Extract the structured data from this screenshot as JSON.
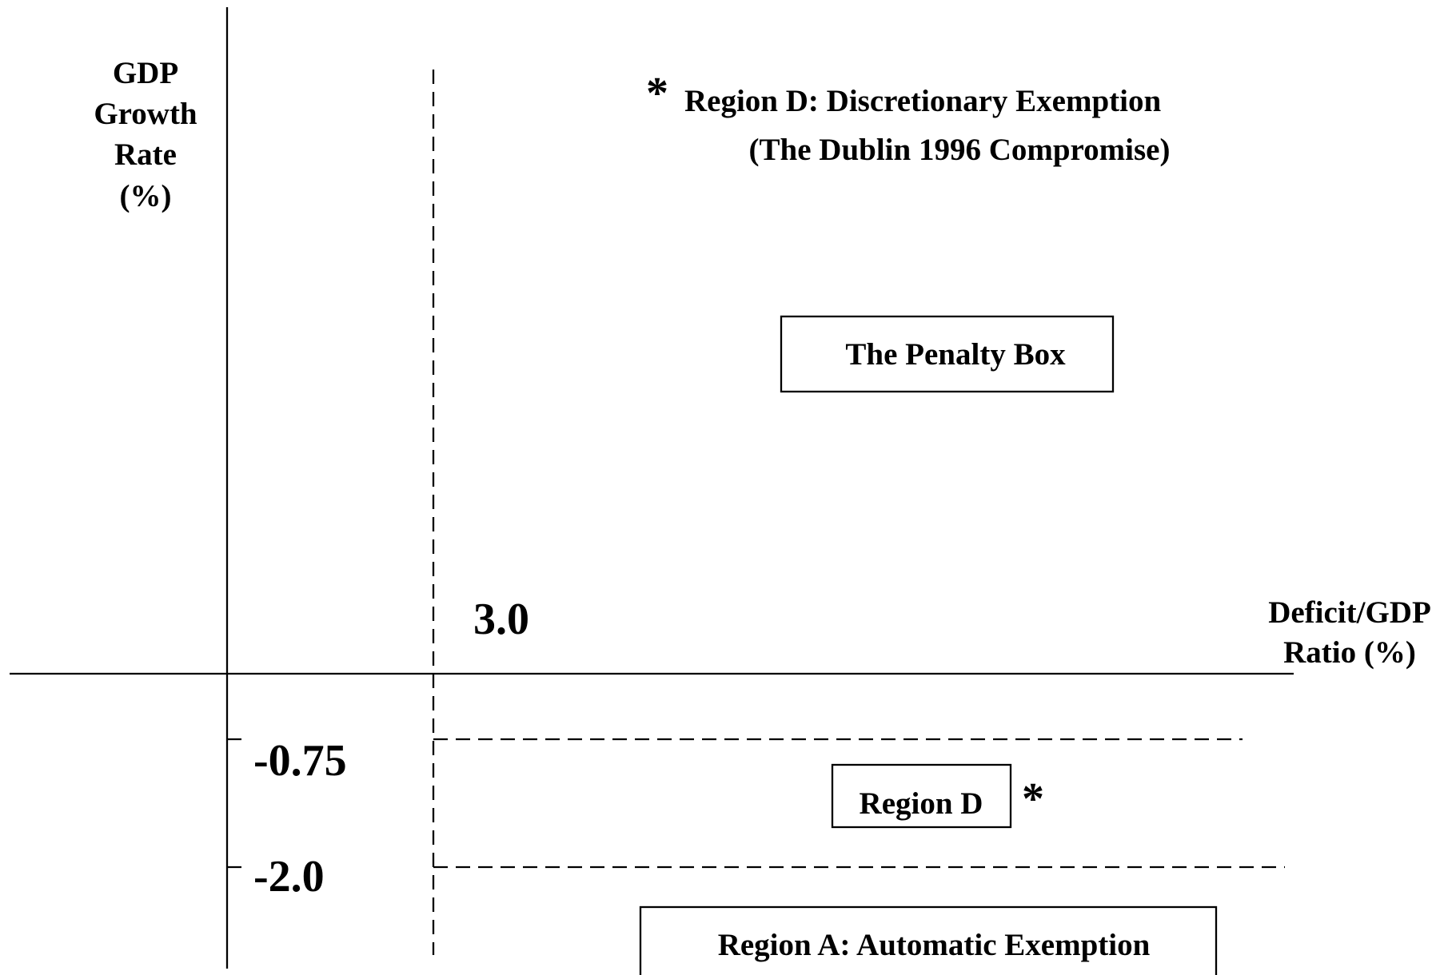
{
  "y_axis_label": [
    "GDP",
    "Growth",
    "Rate",
    "(%)"
  ],
  "x_axis_label": [
    "Deficit/GDP",
    "Ratio (%)"
  ],
  "x_threshold_label": "3.0",
  "y_threshold_labels": [
    "-0.75",
    "-2.0"
  ],
  "note": {
    "marker": "*",
    "lines": [
      "Region D: Discretionary Exemption",
      "(The Dublin 1996 Compromise)"
    ]
  },
  "regions": {
    "penalty": "The Penalty Box",
    "region_d": "Region D",
    "region_d_marker": "*",
    "region_a": "Region A: Automatic Exemption"
  }
}
